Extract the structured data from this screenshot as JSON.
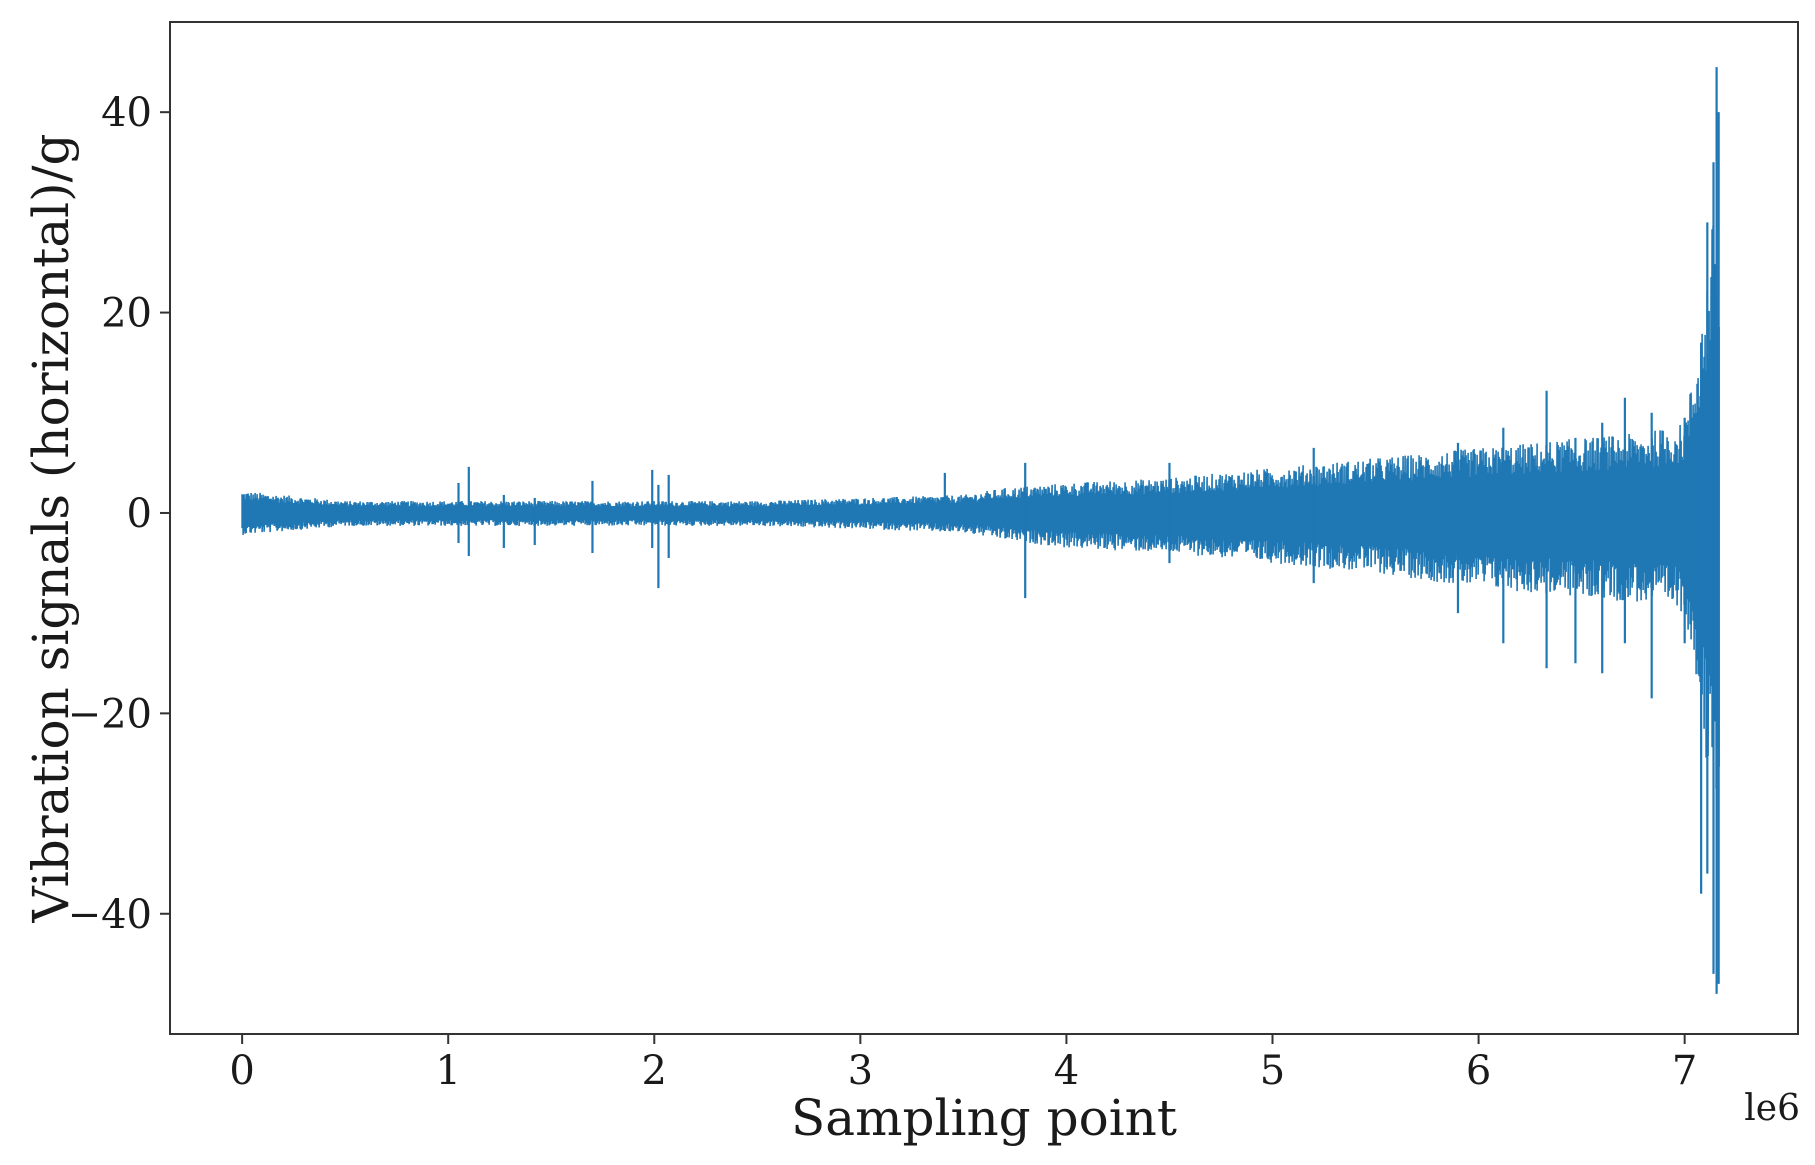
{
  "chart_data": {
    "type": "line",
    "xlabel": "Sampling point",
    "ylabel": "Vibration signals (horizontal)/g",
    "x_offset_label": "le6",
    "xlim": [
      -0.35,
      7.55
    ],
    "ylim": [
      -52,
      49
    ],
    "x_ticks": [
      0,
      1,
      2,
      3,
      4,
      5,
      6,
      7
    ],
    "y_ticks": [
      -40,
      -20,
      0,
      20,
      40
    ],
    "y_tick_labels": [
      "−40",
      "−20",
      "0",
      "20",
      "40"
    ],
    "grid": false,
    "legend": "none",
    "series": [
      {
        "color": "#1f77b4",
        "x_units": "1e6 sampling points",
        "x_range": [
          0,
          7.17
        ],
        "envelope": {
          "x": [
            0.0,
            0.5,
            1.0,
            1.5,
            2.0,
            2.5,
            3.0,
            3.5,
            3.7,
            4.0,
            4.5,
            5.0,
            5.5,
            6.0,
            6.5,
            6.8,
            7.0,
            7.05,
            7.1,
            7.14,
            7.17
          ],
          "upper": [
            2.2,
            1.2,
            1.2,
            1.2,
            1.2,
            1.2,
            1.5,
            1.8,
            2.5,
            3.0,
            3.5,
            4.5,
            5.5,
            6.5,
            7.5,
            8.0,
            9.0,
            15.0,
            22.0,
            30.0,
            26.0
          ],
          "lower": [
            -2.2,
            -1.3,
            -1.3,
            -1.3,
            -1.3,
            -1.3,
            -1.6,
            -2.0,
            -2.7,
            -3.5,
            -4.0,
            -5.0,
            -6.0,
            -7.5,
            -8.5,
            -9.0,
            -10.0,
            -15.0,
            -25.0,
            -32.0,
            -28.0
          ]
        },
        "spikes": [
          {
            "x": 1.05,
            "max": 3.0,
            "min": -3.0
          },
          {
            "x": 1.1,
            "max": 4.6,
            "min": -4.3
          },
          {
            "x": 1.27,
            "max": 1.8,
            "min": -3.5
          },
          {
            "x": 1.42,
            "max": 1.5,
            "min": -3.2
          },
          {
            "x": 1.7,
            "max": 3.2,
            "min": -4.0
          },
          {
            "x": 1.99,
            "max": 4.3,
            "min": -3.5
          },
          {
            "x": 2.02,
            "max": 2.8,
            "min": -7.5
          },
          {
            "x": 2.07,
            "max": 3.8,
            "min": -4.5
          },
          {
            "x": 3.41,
            "max": 4.0,
            "min": -1.8
          },
          {
            "x": 3.8,
            "max": 5.0,
            "min": -8.5
          },
          {
            "x": 4.5,
            "max": 5.0,
            "min": -5.0
          },
          {
            "x": 5.2,
            "max": 6.5,
            "min": -7.0
          },
          {
            "x": 5.9,
            "max": 7.0,
            "min": -10.0
          },
          {
            "x": 6.12,
            "max": 8.5,
            "min": -13.0
          },
          {
            "x": 6.33,
            "max": 12.2,
            "min": -15.5
          },
          {
            "x": 6.47,
            "max": 7.5,
            "min": -15.0
          },
          {
            "x": 6.6,
            "max": 9.0,
            "min": -16.0
          },
          {
            "x": 6.71,
            "max": 11.5,
            "min": -13.0
          },
          {
            "x": 6.84,
            "max": 10.0,
            "min": -18.5
          },
          {
            "x": 7.0,
            "max": 9.5,
            "min": -13.0
          },
          {
            "x": 7.08,
            "max": 17.0,
            "min": -38.0
          },
          {
            "x": 7.11,
            "max": 29.0,
            "min": -36.0
          },
          {
            "x": 7.14,
            "max": 35.0,
            "min": -46.0
          },
          {
            "x": 7.155,
            "max": 44.5,
            "min": -48.0
          },
          {
            "x": 7.165,
            "max": 40.0,
            "min": -47.0
          }
        ]
      }
    ]
  }
}
